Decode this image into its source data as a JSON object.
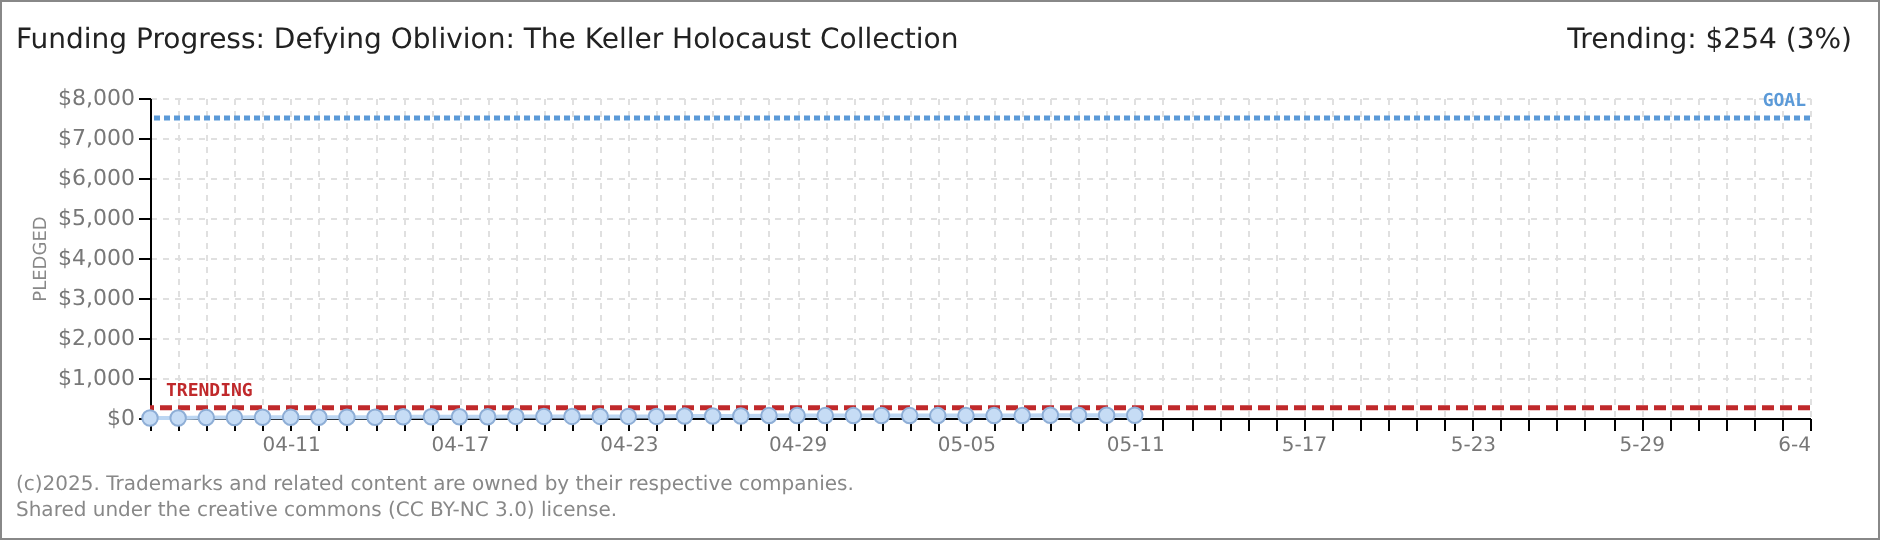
{
  "chart_data": {
    "type": "area",
    "title": "Funding Progress: Defying Oblivion: The Keller Holocaust Collection",
    "ylabel": "PLEDGED",
    "annotations": [
      "Trending: $254 (3%)",
      "(c)2025. Trademarks and related content are owned by their respective companies.",
      "Shared under the creative commons (CC BY-NC 3.0) license."
    ],
    "x": [
      "--04-06",
      "--04-07",
      "--04-08",
      "--04-09",
      "--04-10",
      "--04-11",
      "--04-12",
      "--04-13",
      "--04-14",
      "--04-15",
      "--04-16",
      "--04-17",
      "--04-18",
      "--04-19",
      "--04-20",
      "--04-21",
      "--04-22",
      "--04-23",
      "--04-24",
      "--04-25",
      "--04-26",
      "--04-27",
      "--04-28",
      "--04-29",
      "--04-30",
      "--05-01",
      "--05-02",
      "--05-03",
      "--05-04",
      "--05-05",
      "--05-06",
      "--05-07",
      "--05-08",
      "--05-09",
      "--05-10",
      "--05-11"
    ],
    "series": [
      {
        "color": "#bcd6f2",
        "values": [
          0,
          0,
          10,
          10,
          20,
          20,
          20,
          20,
          20,
          30,
          30,
          30,
          30,
          40,
          40,
          40,
          40,
          40,
          40,
          50,
          50,
          50,
          60,
          60,
          60,
          60,
          60,
          60,
          60,
          60,
          60,
          60,
          70,
          70,
          70,
          70
        ]
      }
    ],
    "marker": "circle",
    "grid": true,
    "xlim": [
      "--04-06",
      "--06-04"
    ],
    "xticks": [
      {
        "value": "--04-06",
        "label": null
      },
      {
        "value": "--04-07",
        "label": null
      },
      {
        "value": "--04-08",
        "label": null
      },
      {
        "value": "--04-09",
        "label": null
      },
      {
        "value": "--04-10",
        "label": null
      },
      {
        "value": "--04-11",
        "label": "04-11"
      },
      {
        "value": "--04-12",
        "label": null
      },
      {
        "value": "--04-13",
        "label": null
      },
      {
        "value": "--04-14",
        "label": null
      },
      {
        "value": "--04-15",
        "label": null
      },
      {
        "value": "--04-16",
        "label": null
      },
      {
        "value": "--04-17",
        "label": "04-17"
      },
      {
        "value": "--04-18",
        "label": null
      },
      {
        "value": "--04-19",
        "label": null
      },
      {
        "value": "--04-20",
        "label": null
      },
      {
        "value": "--04-21",
        "label": null
      },
      {
        "value": "--04-22",
        "label": null
      },
      {
        "value": "--04-23",
        "label": "04-23"
      },
      {
        "value": "--04-24",
        "label": null
      },
      {
        "value": "--04-25",
        "label": null
      },
      {
        "value": "--04-26",
        "label": null
      },
      {
        "value": "--04-27",
        "label": null
      },
      {
        "value": "--04-28",
        "label": null
      },
      {
        "value": "--04-29",
        "label": "04-29"
      },
      {
        "value": "--04-30",
        "label": null
      },
      {
        "value": "--05-01",
        "label": null
      },
      {
        "value": "--05-02",
        "label": null
      },
      {
        "value": "--05-03",
        "label": null
      },
      {
        "value": "--05-04",
        "label": null
      },
      {
        "value": "--05-05",
        "label": "05-05"
      },
      {
        "value": "--05-06",
        "label": null
      },
      {
        "value": "--05-07",
        "label": null
      },
      {
        "value": "--05-08",
        "label": null
      },
      {
        "value": "--05-09",
        "label": null
      },
      {
        "value": "--05-10",
        "label": null
      },
      {
        "value": "--05-11",
        "label": "05-11"
      },
      {
        "value": "--05-12",
        "label": null
      },
      {
        "value": "--05-13",
        "label": null
      },
      {
        "value": "--05-14",
        "label": null
      },
      {
        "value": "--05-15",
        "label": null
      },
      {
        "value": "--05-16",
        "label": null
      },
      {
        "value": "--05-17",
        "label": "5-17"
      },
      {
        "value": "--05-18",
        "label": null
      },
      {
        "value": "--05-19",
        "label": null
      },
      {
        "value": "--05-20",
        "label": null
      },
      {
        "value": "--05-21",
        "label": null
      },
      {
        "value": "--05-22",
        "label": null
      },
      {
        "value": "--05-23",
        "label": "5-23"
      },
      {
        "value": "--05-24",
        "label": null
      },
      {
        "value": "--05-25",
        "label": null
      },
      {
        "value": "--05-26",
        "label": null
      },
      {
        "value": "--05-27",
        "label": null
      },
      {
        "value": "--05-28",
        "label": null
      },
      {
        "value": "--05-29",
        "label": "5-29"
      },
      {
        "value": "--05-30",
        "label": null
      },
      {
        "value": "--05-31",
        "label": null
      },
      {
        "value": "--06-01",
        "label": null
      },
      {
        "value": "--06-02",
        "label": null
      },
      {
        "value": "--06-03",
        "label": null
      },
      {
        "value": "--06-04",
        "label": "6-4"
      }
    ],
    "ylim": [
      0,
      8000
    ],
    "yticks": [
      {
        "value": 0,
        "label": "$0"
      },
      {
        "value": 1000,
        "label": "$1,000"
      },
      {
        "value": 2000,
        "label": "$2,000"
      },
      {
        "value": 3000,
        "label": "$3,000"
      },
      {
        "value": 4000,
        "label": "$4,000"
      },
      {
        "value": 5000,
        "label": "$5,000"
      },
      {
        "value": 6000,
        "label": "$6,000"
      },
      {
        "value": 7000,
        "label": "$7,000"
      },
      {
        "value": 8000,
        "label": "$8,000"
      }
    ],
    "ref_lines": [
      {
        "axis": "y",
        "value": 7500,
        "label": "GOAL",
        "color": "#5b9ad8",
        "line_style": "dotted"
      },
      {
        "axis": "y",
        "value": 254,
        "label": "TRENDING",
        "color": "#c0292b",
        "line_style": "dashed"
      }
    ]
  }
}
